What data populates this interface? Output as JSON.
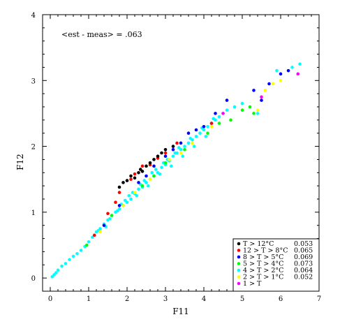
{
  "chart_data": {
    "type": "scatter",
    "title": "",
    "xlabel": "F11",
    "ylabel": "F12",
    "xlim": [
      -0.2,
      7
    ],
    "ylim": [
      -0.2,
      4
    ],
    "xticks": [
      "0",
      "1",
      "2",
      "3",
      "4",
      "5",
      "6",
      "7"
    ],
    "yticks": [
      "0",
      "1",
      "2",
      "3",
      "4"
    ],
    "annotation": "<est - meas> = .063",
    "legend_position": "bottom-right",
    "grid": false,
    "series": [
      {
        "name": "T > 12°C",
        "value": "0.053",
        "color": "#000000",
        "points": [
          [
            1.9,
            1.45
          ],
          [
            2.1,
            1.55
          ],
          [
            2.3,
            1.6
          ],
          [
            2.5,
            1.7
          ],
          [
            2.7,
            1.8
          ],
          [
            2.9,
            1.9
          ],
          [
            3.2,
            2.0
          ],
          [
            2.2,
            1.52
          ],
          [
            2.4,
            1.62
          ],
          [
            2.0,
            1.48
          ],
          [
            2.6,
            1.75
          ],
          [
            3.0,
            1.95
          ],
          [
            1.8,
            1.38
          ],
          [
            2.8,
            1.85
          ],
          [
            2.35,
            1.65
          ]
        ]
      },
      {
        "name": "12 > T > 8°C",
        "value": "0.065",
        "color": "#ff0000",
        "points": [
          [
            1.15,
            0.65
          ],
          [
            1.5,
            0.98
          ],
          [
            1.8,
            1.3
          ],
          [
            2.1,
            1.5
          ],
          [
            2.4,
            1.7
          ],
          [
            2.8,
            1.82
          ],
          [
            3.3,
            2.05
          ],
          [
            4.2,
            2.35
          ],
          [
            2.6,
            1.72
          ],
          [
            1.7,
            1.15
          ],
          [
            2.2,
            1.58
          ],
          [
            3.0,
            1.9
          ]
        ]
      },
      {
        "name": "8 > T > 5°C",
        "value": "0.069",
        "color": "#0000ff",
        "points": [
          [
            1.4,
            0.8
          ],
          [
            1.8,
            1.1
          ],
          [
            2.3,
            1.45
          ],
          [
            2.7,
            1.7
          ],
          [
            3.0,
            1.85
          ],
          [
            3.4,
            2.05
          ],
          [
            3.8,
            2.25
          ],
          [
            4.3,
            2.5
          ],
          [
            4.6,
            2.7
          ],
          [
            5.3,
            2.85
          ],
          [
            5.7,
            2.95
          ],
          [
            6.0,
            3.1
          ],
          [
            6.2,
            3.15
          ],
          [
            5.5,
            2.7
          ],
          [
            3.6,
            2.2
          ],
          [
            3.2,
            1.95
          ],
          [
            2.5,
            1.55
          ],
          [
            4.0,
            2.3
          ]
        ]
      },
      {
        "name": "5 > T > 4°C",
        "value": "0.073",
        "color": "#00ff00",
        "points": [
          [
            0.95,
            0.5
          ],
          [
            1.6,
            0.95
          ],
          [
            2.4,
            1.4
          ],
          [
            3.0,
            1.75
          ],
          [
            3.5,
            1.95
          ],
          [
            4.1,
            2.2
          ],
          [
            4.7,
            2.4
          ],
          [
            5.0,
            2.55
          ],
          [
            5.2,
            2.6
          ],
          [
            5.3,
            2.5
          ],
          [
            4.4,
            2.35
          ],
          [
            2.7,
            1.55
          ]
        ]
      },
      {
        "name": "4 > T > 2°C",
        "value": "0.064",
        "color": "#00ffff",
        "points": [
          [
            0.05,
            0.02
          ],
          [
            0.1,
            0.05
          ],
          [
            0.15,
            0.08
          ],
          [
            0.2,
            0.12
          ],
          [
            0.3,
            0.18
          ],
          [
            0.4,
            0.22
          ],
          [
            0.5,
            0.28
          ],
          [
            0.6,
            0.33
          ],
          [
            0.7,
            0.37
          ],
          [
            0.8,
            0.42
          ],
          [
            0.9,
            0.48
          ],
          [
            1.0,
            0.55
          ],
          [
            1.1,
            0.62
          ],
          [
            1.2,
            0.7
          ],
          [
            1.3,
            0.75
          ],
          [
            1.4,
            0.82
          ],
          [
            1.5,
            0.88
          ],
          [
            1.6,
            0.95
          ],
          [
            1.7,
            1.0
          ],
          [
            1.8,
            1.05
          ],
          [
            1.9,
            1.1
          ],
          [
            2.0,
            1.15
          ],
          [
            2.1,
            1.2
          ],
          [
            2.2,
            1.28
          ],
          [
            2.3,
            1.35
          ],
          [
            2.4,
            1.38
          ],
          [
            2.5,
            1.45
          ],
          [
            2.6,
            1.5
          ],
          [
            2.7,
            1.55
          ],
          [
            2.8,
            1.6
          ],
          [
            2.9,
            1.68
          ],
          [
            3.0,
            1.72
          ],
          [
            3.1,
            1.78
          ],
          [
            3.2,
            1.85
          ],
          [
            3.3,
            1.9
          ],
          [
            3.4,
            1.95
          ],
          [
            3.5,
            2.0
          ],
          [
            3.6,
            2.05
          ],
          [
            3.7,
            2.1
          ],
          [
            3.8,
            2.15
          ],
          [
            3.9,
            2.2
          ],
          [
            4.0,
            2.25
          ],
          [
            4.1,
            2.3
          ],
          [
            4.2,
            2.35
          ],
          [
            4.3,
            2.4
          ],
          [
            4.4,
            2.45
          ],
          [
            4.5,
            2.5
          ],
          [
            4.6,
            2.55
          ],
          [
            4.8,
            2.6
          ],
          [
            5.0,
            2.65
          ],
          [
            5.4,
            2.5
          ],
          [
            6.3,
            3.2
          ],
          [
            6.5,
            3.25
          ],
          [
            5.9,
            3.15
          ],
          [
            1.25,
            0.72
          ],
          [
            1.55,
            0.9
          ],
          [
            1.85,
            1.12
          ],
          [
            2.15,
            1.3
          ],
          [
            2.45,
            1.48
          ],
          [
            2.75,
            1.65
          ],
          [
            3.05,
            1.8
          ],
          [
            3.35,
            1.98
          ],
          [
            3.65,
            2.12
          ],
          [
            3.95,
            2.28
          ],
          [
            4.25,
            2.42
          ],
          [
            2.05,
            1.25
          ],
          [
            2.35,
            1.42
          ],
          [
            2.65,
            1.6
          ],
          [
            2.95,
            1.75
          ],
          [
            3.25,
            1.9
          ],
          [
            1.45,
            0.78
          ],
          [
            1.75,
            1.02
          ],
          [
            1.95,
            1.18
          ],
          [
            2.25,
            1.25
          ],
          [
            2.55,
            1.4
          ],
          [
            2.85,
            1.58
          ],
          [
            3.15,
            1.7
          ],
          [
            3.45,
            1.85
          ],
          [
            3.75,
            2.0
          ],
          [
            4.05,
            2.15
          ]
        ]
      },
      {
        "name": "2 > T > 1°C",
        "value": "0.052",
        "color": "#ffff00",
        "points": [
          [
            1.3,
            0.7
          ],
          [
            1.9,
            1.1
          ],
          [
            2.6,
            1.5
          ],
          [
            3.1,
            1.8
          ],
          [
            3.7,
            2.05
          ],
          [
            4.2,
            2.3
          ],
          [
            5.4,
            2.55
          ],
          [
            5.6,
            2.85
          ],
          [
            5.8,
            2.95
          ],
          [
            6.0,
            3.0
          ],
          [
            3.4,
            1.9
          ],
          [
            2.2,
            1.3
          ]
        ]
      },
      {
        "name": "1 > T",
        "value": "",
        "color": "#ff00ff",
        "points": [
          [
            6.45,
            3.1
          ],
          [
            5.5,
            2.75
          ],
          [
            4.5,
            2.5
          ]
        ]
      }
    ]
  }
}
